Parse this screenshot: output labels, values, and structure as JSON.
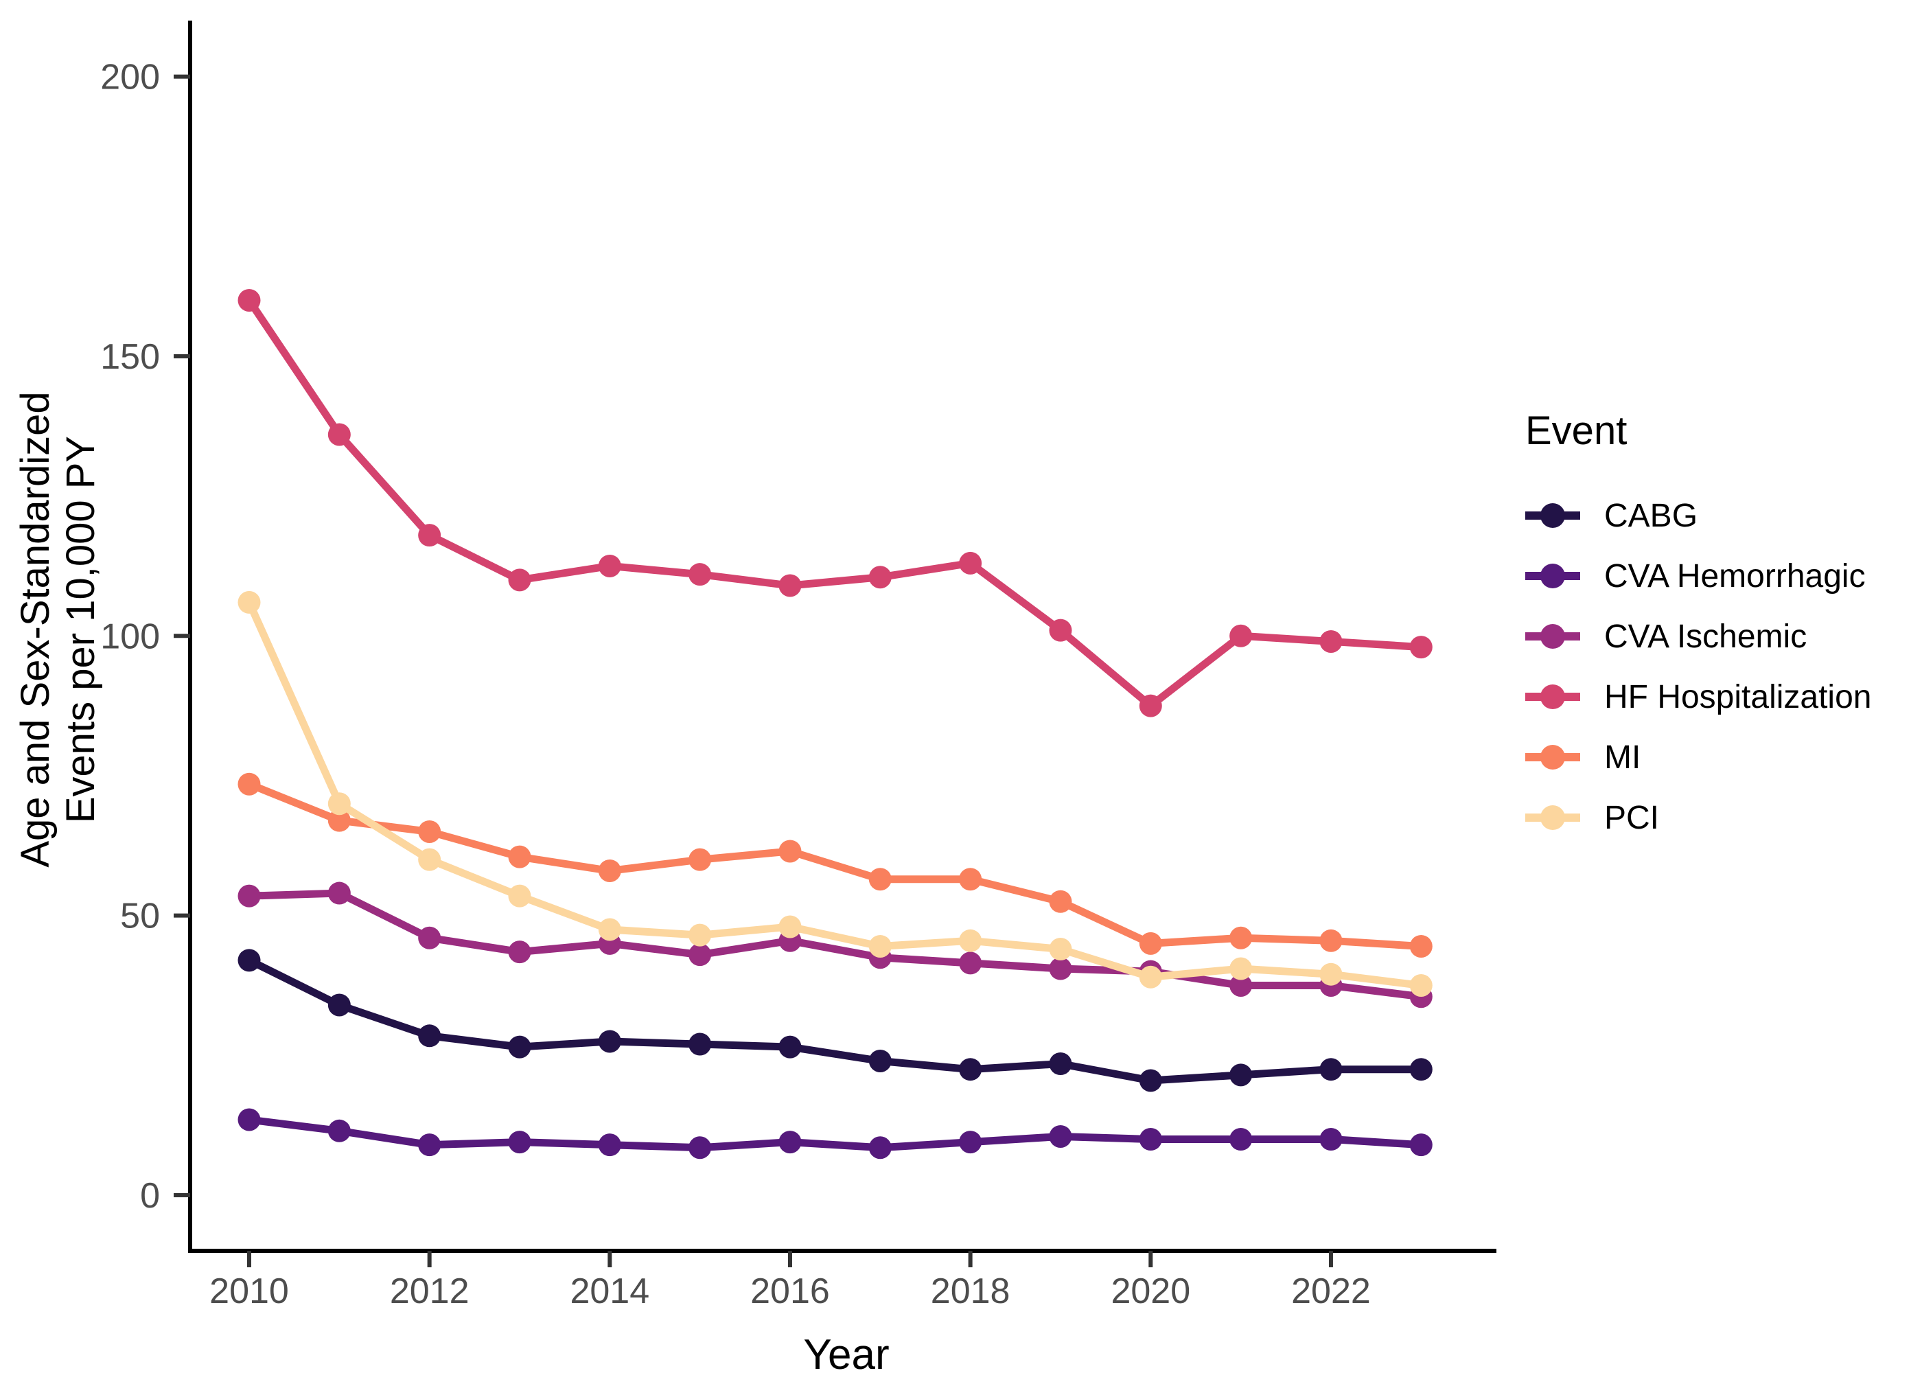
{
  "chart_data": {
    "type": "line",
    "title": "",
    "legend_title": "Event",
    "legend_position": "right",
    "xlabel": "Year",
    "ylabel": "Age and Sex-Standardized Events per 10,000 PY",
    "ylabel_line1": "Age and Sex-Standardized",
    "ylabel_line2": "Events per 10,000 PY",
    "grid": "off",
    "x": [
      2010,
      2011,
      2012,
      2013,
      2014,
      2015,
      2016,
      2017,
      2018,
      2019,
      2020,
      2021,
      2022,
      2023
    ],
    "x_ticks": [
      2010,
      2012,
      2014,
      2016,
      2018,
      2020,
      2022
    ],
    "y_ticks": [
      0,
      50,
      100,
      150,
      200
    ],
    "ylim": [
      -10,
      210
    ],
    "axis_text_color": "#4d4d4d",
    "axis_line_color": "#000000",
    "series": [
      {
        "name": "CABG",
        "color": "#221347",
        "values": [
          42,
          34,
          28.5,
          26.5,
          27.5,
          27,
          26.5,
          24,
          22.5,
          23.5,
          20.5,
          21.5,
          22.5,
          22.5
        ]
      },
      {
        "name": "CVA Hemorrhagic",
        "color": "#551a7c",
        "values": [
          13.5,
          11.5,
          9,
          9.5,
          9,
          8.5,
          9.5,
          8.5,
          9.5,
          10.5,
          10,
          10,
          10,
          9
        ]
      },
      {
        "name": "CVA Ischemic",
        "color": "#9a2d80",
        "values": [
          53.5,
          54,
          46,
          43.5,
          45,
          43,
          45.5,
          42.5,
          41.5,
          40.5,
          40,
          37.5,
          37.5,
          35.5
        ]
      },
      {
        "name": "HF Hospitalization",
        "color": "#d4436e",
        "values": [
          160,
          136,
          118,
          110,
          112.5,
          111,
          109,
          110.5,
          113,
          101,
          87.5,
          100,
          99,
          98
        ]
      },
      {
        "name": "MI",
        "color": "#f9805d",
        "values": [
          73.5,
          67,
          65,
          60.5,
          58,
          60,
          61.5,
          56.5,
          56.5,
          52.5,
          45,
          46,
          45.5,
          44.5
        ]
      },
      {
        "name": "PCI",
        "color": "#fcd69e",
        "values": [
          106,
          70,
          60,
          53.5,
          47.5,
          46.5,
          48,
          44.5,
          45.5,
          44,
          39,
          40.5,
          39.5,
          37.5
        ]
      }
    ]
  }
}
